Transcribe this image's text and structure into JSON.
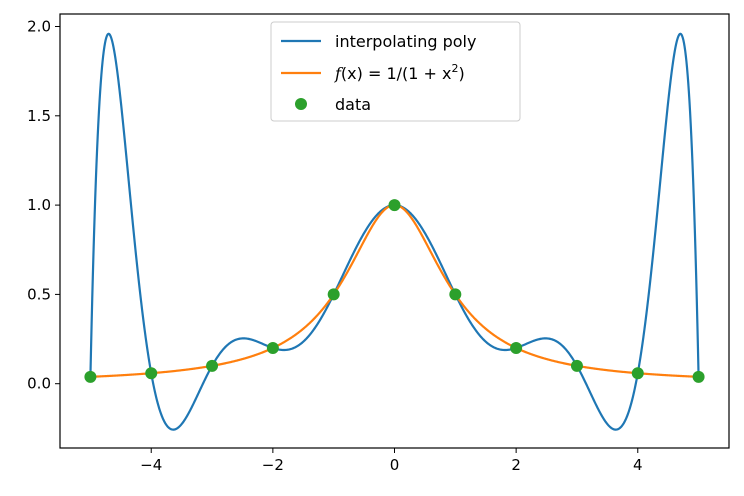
{
  "chart_data": {
    "type": "line",
    "title": "",
    "xlabel": "",
    "ylabel": "",
    "xlim": [
      -5.5,
      5.5
    ],
    "ylim": [
      -0.36,
      2.07
    ],
    "x_ticks": [
      -4,
      -2,
      0,
      2,
      4
    ],
    "x_tick_labels": [
      "−4",
      "−2",
      "0",
      "2",
      "4"
    ],
    "y_ticks": [
      0.0,
      0.5,
      1.0,
      1.5,
      2.0
    ],
    "y_tick_labels": [
      "0.0",
      "0.5",
      "1.0",
      "1.5",
      "2.0"
    ],
    "grid": false,
    "legend_position": "upper center",
    "series": [
      {
        "name": "interpolating poly",
        "kind": "line",
        "color": "#1f77b4",
        "function": "degree-10 polynomial interpolating f(x) at x = -5..5"
      },
      {
        "name": "f(x) = 1/(1 + x²)",
        "kind": "line",
        "color": "#ff7f0e",
        "function": "1/(1+x^2)"
      },
      {
        "name": "data",
        "kind": "scatter",
        "color": "#2ca02c",
        "x": [
          -5,
          -4,
          -3,
          -2,
          -1,
          0,
          1,
          2,
          3,
          4,
          5
        ],
        "y": [
          0.0385,
          0.0588,
          0.1,
          0.2,
          0.5,
          1.0,
          0.5,
          0.2,
          0.1,
          0.0588,
          0.0385
        ]
      }
    ],
    "legend": {
      "entries": [
        {
          "label": "interpolating poly",
          "color": "#1f77b4",
          "marker": "line"
        },
        {
          "label_prefix": "f",
          "label_math": "(x) = 1/(1 + x",
          "label_sup": "2",
          "label_suffix": ")",
          "color": "#ff7f0e",
          "marker": "line"
        },
        {
          "label": "data",
          "color": "#2ca02c",
          "marker": "dot"
        }
      ]
    }
  }
}
